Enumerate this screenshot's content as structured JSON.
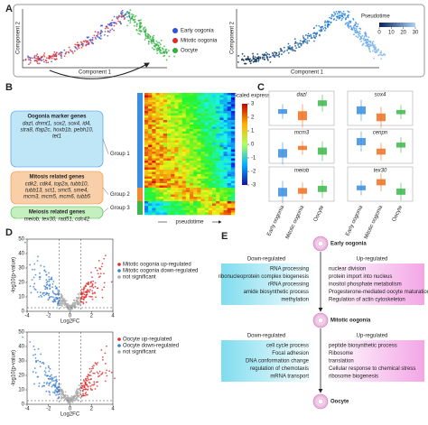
{
  "panel_a": {
    "label": "A",
    "x_label": "Component 1",
    "y_label": "Component 2",
    "legend": [
      {
        "name": "Early oogonia",
        "color": "#3050e0"
      },
      {
        "name": "Mitotic oogonia",
        "color": "#e02a2a"
      },
      {
        "name": "Oocyte",
        "color": "#30b040"
      }
    ],
    "pseudotime_label": "Pseudotime",
    "pseudotime_lim": [
      0,
      30
    ],
    "pseudotime_ticks": [
      0,
      10,
      20,
      30
    ]
  },
  "panel_b": {
    "label": "B",
    "scale_label": "Scaled expression",
    "scale_lim": [
      -3,
      3
    ],
    "scale_ticks": [
      3,
      2,
      1,
      0,
      -1,
      -2,
      -3
    ],
    "x_label": "pseudotime",
    "gene_groups": [
      {
        "title": "Oogonia marker genes",
        "genes": [
          "dazl, dnmt1, sox2, sox4, id4,",
          "stra8, tfap2c, hoxb1b, pebh10,",
          "tet1"
        ],
        "group": "Group 1",
        "color": "#bfe6f7"
      },
      {
        "title": "Mitosis related genes",
        "genes": [
          "cdk2, cdk4, top2a, tubb10,",
          "tubb13, sct1, smc5, sme4,",
          "mcm3, mcm5, mcm6, tubb5"
        ],
        "group": "Group 2",
        "color": "#f8cfa8"
      },
      {
        "title": "Meiosis related genes",
        "genes": [
          "meiob, tex30, rad51, cdc42"
        ],
        "group": "Group 3",
        "color": "#c6efc0"
      }
    ]
  },
  "panel_c": {
    "label": "C",
    "genes": [
      "dazl",
      "sox4",
      "mcm3",
      "cenpn",
      "meiob",
      "tex30"
    ],
    "categories": [
      "Early oogonia",
      "Mitotic oogonia",
      "Oocyte"
    ]
  },
  "panel_d": {
    "label": "D",
    "plots": [
      {
        "y_label": "-log10(p-value)",
        "x_label": "Log2FC",
        "xlim": [
          -4,
          4
        ],
        "xticks": [
          -4,
          -2,
          0,
          2,
          4
        ],
        "ylim": [
          0,
          50
        ],
        "yticks": [
          0,
          10,
          20,
          30,
          40,
          50
        ],
        "legend": [
          "Mitotic oogonia up-regulated",
          "Mitotic oogonia down-regulated",
          "not significant"
        ]
      },
      {
        "y_label": "-log10(p-value)",
        "x_label": "Log2FC",
        "xlim": [
          -4,
          4
        ],
        "xticks": [
          -4,
          -2,
          0,
          2,
          4
        ],
        "ylim": [
          0,
          50
        ],
        "yticks": [
          0,
          10,
          20,
          30,
          40,
          50
        ],
        "legend": [
          "Oocyte up-regulated",
          "Oocyte down-regulated",
          "not significant"
        ]
      }
    ]
  },
  "panel_e": {
    "label": "E",
    "stages": [
      "Early oogonia",
      "Mitotic oogonia",
      "Oocyte"
    ],
    "down_label": "Down-regulated",
    "up_label": "Up-regulated",
    "transitions": [
      {
        "down": [
          "RNA processing",
          "ribonucleoprotein complex biogenesis",
          "rRNA processing",
          "amide biosynthetic process",
          "methylation"
        ],
        "up": [
          "nuclear division",
          "protein import into nucleus",
          "inositol phosphate metabolism",
          "Progesterone-mediated oocyte maturation",
          "Regulation of actin cytoskeleton"
        ]
      },
      {
        "down": [
          "cell cycle process",
          "Focal adhesion",
          "DNA conformation change",
          "regulation of chemotaxis",
          "mRNA transport"
        ],
        "up": [
          "peptide biosynthetic process",
          "Ribosome",
          "translation",
          "Cellular response to chemical stress",
          "ribosome biogenesis"
        ]
      }
    ]
  }
}
